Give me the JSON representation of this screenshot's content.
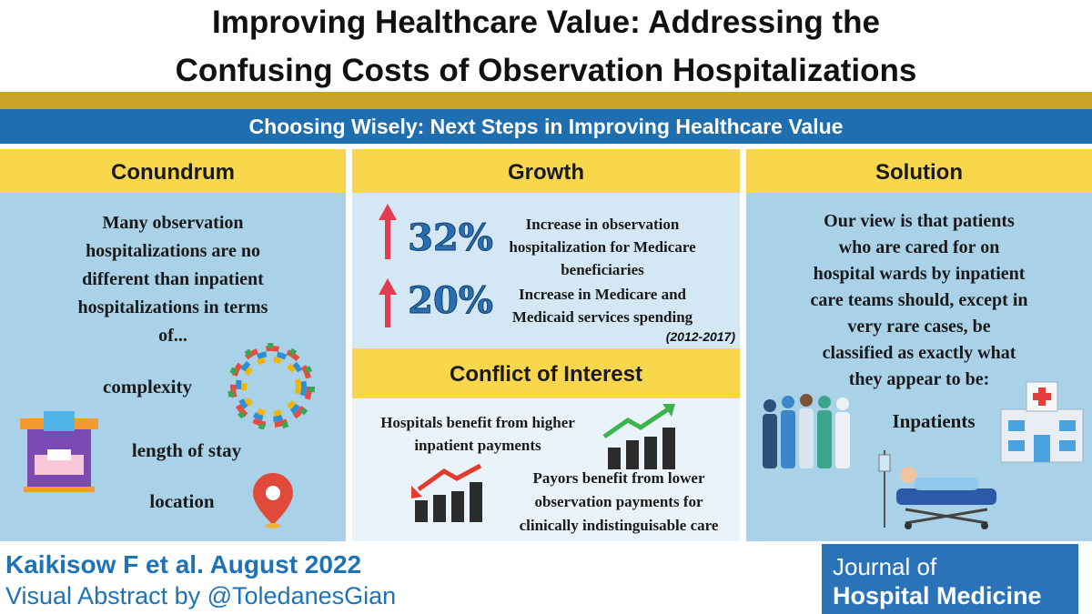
{
  "header": {
    "title_lines": [
      "Improving Healthcare Value: Addressing the",
      "Confusing Costs of Observation Hospitalizations"
    ]
  },
  "banner": "Choosing Wisely: Next Steps in Improving Healthcare Value",
  "conundrum": {
    "heading": "Conundrum",
    "text_lines": [
      "Many observation",
      "hospitalizations are no",
      "different than inpatient",
      "hospitalizations in terms",
      "of..."
    ],
    "items": [
      "complexity",
      "length of stay",
      "location"
    ]
  },
  "growth": {
    "heading": "Growth",
    "stats": [
      {
        "value": "32%",
        "text_lines": [
          "Increase in observation",
          "hospitalization for Medicare",
          "beneficiaries"
        ]
      },
      {
        "value": "20%",
        "text_lines": [
          "Increase in Medicare and",
          "Medicaid services spending"
        ]
      }
    ],
    "period": "(2012-2017)"
  },
  "conflict": {
    "heading": "Conflict of Interest",
    "hospitals_lines": [
      "Hospitals benefit from higher",
      "inpatient payments"
    ],
    "payors_lines": [
      "Payors benefit from lower",
      "observation payments for",
      "clinically indistinguisable care"
    ]
  },
  "solution": {
    "heading": "Solution",
    "text_lines": [
      "Our view is that patients",
      "who are cared for on",
      "hospital wards by inpatient",
      "care teams should, except in",
      "very rare cases, be",
      "classified as exactly what",
      "they appear to be:"
    ],
    "label": "Inpatients"
  },
  "footer": {
    "citation": "Kaikisow F et al. August 2022",
    "credit": "Visual Abstract by @ToledanesGian",
    "journal_lines": [
      "Journal of",
      "Hospital Medicine"
    ]
  }
}
